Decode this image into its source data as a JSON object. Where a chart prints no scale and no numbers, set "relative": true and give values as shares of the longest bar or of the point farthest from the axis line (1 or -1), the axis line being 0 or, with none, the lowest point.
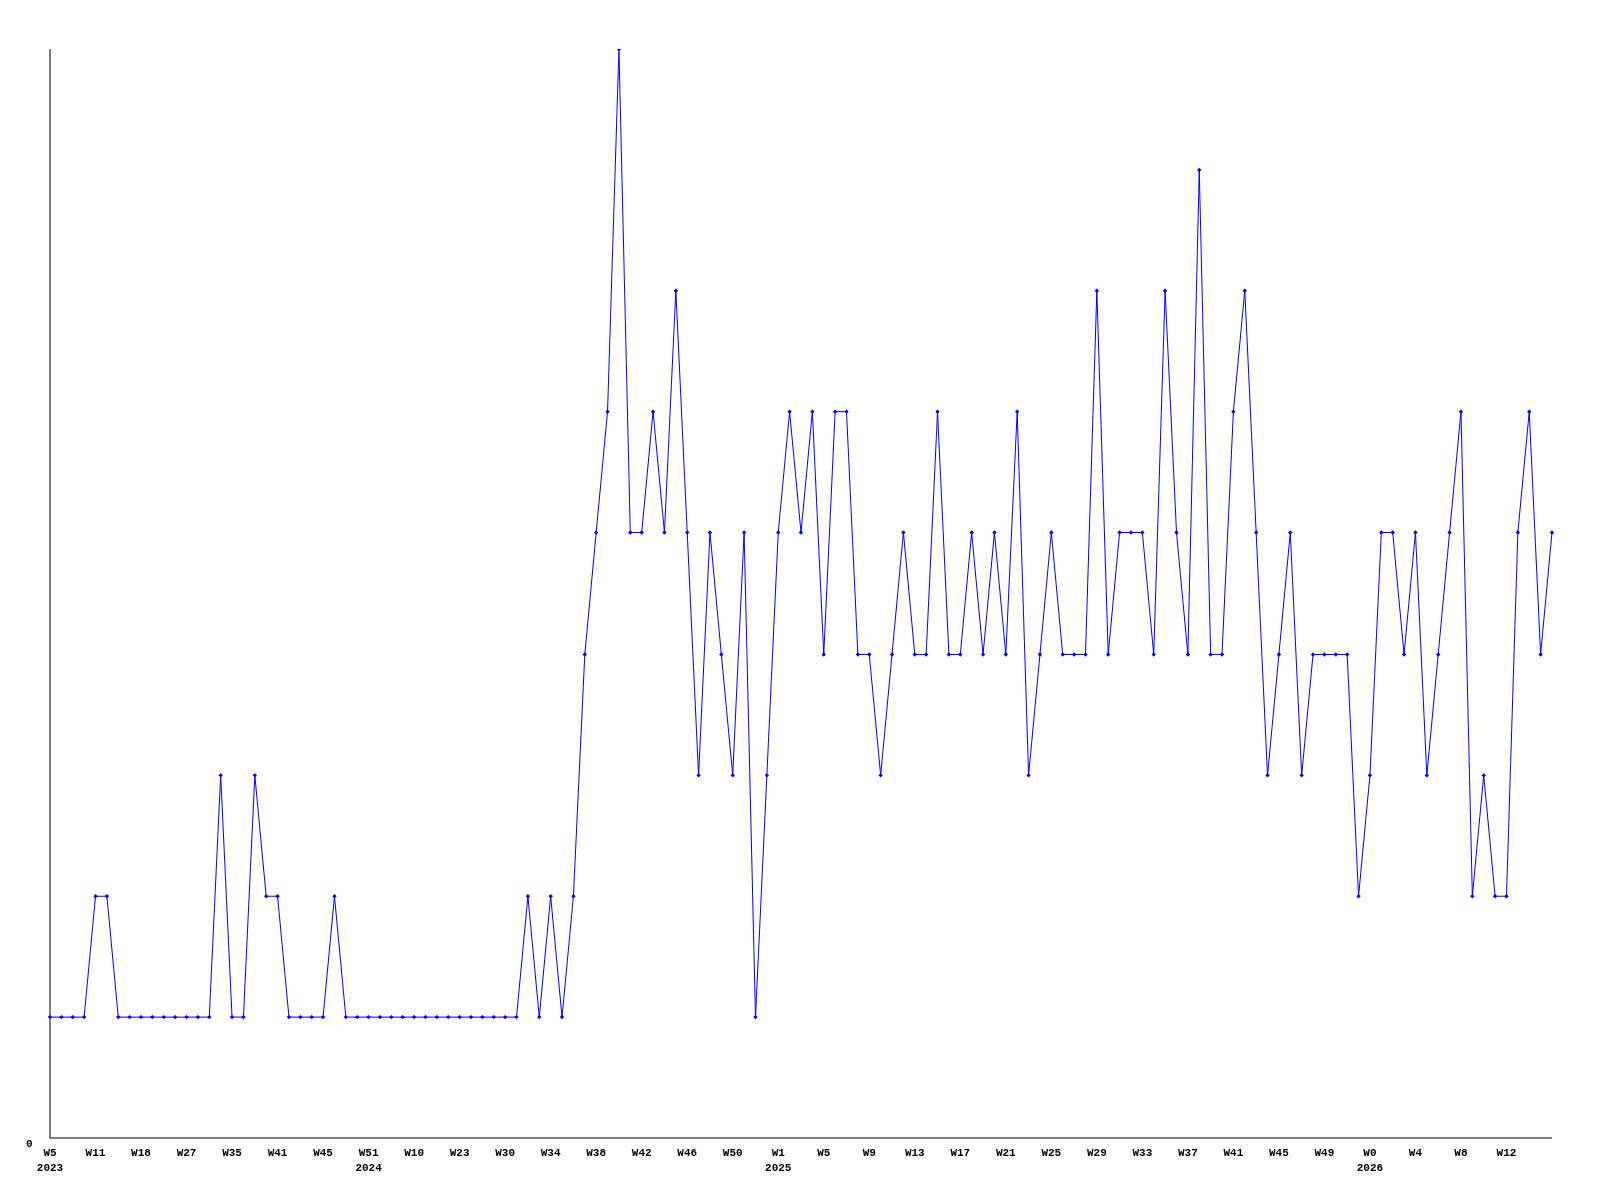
{
  "chart_data": {
    "type": "line",
    "relative": true,
    "annotations": [
      "0"
    ],
    "marker": "diamond",
    "grid": false,
    "legend": false,
    "categories": [
      "W5 2023",
      null,
      null,
      null,
      "W11",
      null,
      null,
      null,
      "W18",
      null,
      null,
      null,
      "W27",
      null,
      null,
      null,
      "W35",
      null,
      null,
      null,
      "W41",
      null,
      null,
      null,
      "W45",
      null,
      null,
      null,
      "W51 2024",
      null,
      null,
      null,
      "W10",
      null,
      null,
      null,
      "W23",
      null,
      null,
      null,
      "W30",
      null,
      null,
      null,
      "W34",
      null,
      null,
      null,
      "W38",
      null,
      null,
      null,
      "W42",
      null,
      null,
      null,
      "W46",
      null,
      null,
      null,
      "W50",
      null,
      null,
      null,
      "W1 2025",
      null,
      null,
      null,
      "W5",
      null,
      null,
      null,
      "W9",
      null,
      null,
      null,
      "W13",
      null,
      null,
      null,
      "W17",
      null,
      null,
      null,
      "W21",
      null,
      null,
      null,
      "W25",
      null,
      null,
      null,
      "W29",
      null,
      null,
      null,
      "W33",
      null,
      null,
      null,
      "W37",
      null,
      null,
      null,
      "W41",
      null,
      null,
      null,
      "W45",
      null,
      null,
      null,
      "W49",
      null,
      null,
      null,
      "W0 2026",
      null,
      null,
      null,
      "W4",
      null,
      null,
      null,
      "W8",
      null,
      null,
      null,
      "W12",
      null,
      null,
      null,
      null
    ],
    "series": [
      {
        "color": "#0000ff",
        "values": [
          0.111,
          0.111,
          0.111,
          0.111,
          0.222,
          0.222,
          0.111,
          0.111,
          0.111,
          0.111,
          0.111,
          0.111,
          0.111,
          0.111,
          0.111,
          0.333,
          0.111,
          0.111,
          0.333,
          0.222,
          0.222,
          0.111,
          0.111,
          0.111,
          0.111,
          0.222,
          0.111,
          0.111,
          0.111,
          0.111,
          0.111,
          0.111,
          0.111,
          0.111,
          0.111,
          0.111,
          0.111,
          0.111,
          0.111,
          0.111,
          0.111,
          0.111,
          0.222,
          0.111,
          0.222,
          0.111,
          0.222,
          0.444,
          0.556,
          0.667,
          1,
          0.556,
          0.556,
          0.667,
          0.556,
          0.778,
          0.556,
          0.333,
          0.556,
          0.444,
          0.333,
          0.556,
          0.111,
          0.333,
          0.556,
          0.667,
          0.556,
          0.667,
          0.444,
          0.667,
          0.667,
          0.444,
          0.444,
          0.333,
          0.444,
          0.556,
          0.444,
          0.444,
          0.667,
          0.444,
          0.444,
          0.556,
          0.444,
          0.556,
          0.444,
          0.667,
          0.333,
          0.444,
          0.556,
          0.444,
          0.444,
          0.444,
          0.778,
          0.444,
          0.556,
          0.556,
          0.556,
          0.444,
          0.778,
          0.556,
          0.444,
          0.889,
          0.444,
          0.444,
          0.667,
          0.778,
          0.556,
          0.333,
          0.444,
          0.556,
          0.333,
          0.444,
          0.444,
          0.444,
          0.444,
          0.222,
          0.333,
          0.556,
          0.556,
          0.444,
          0.556,
          0.333,
          0.444,
          0.556,
          0.667,
          0.222,
          0.333,
          0.222,
          0.222,
          0.556,
          0.667,
          0.444,
          0.556
        ]
      }
    ]
  }
}
